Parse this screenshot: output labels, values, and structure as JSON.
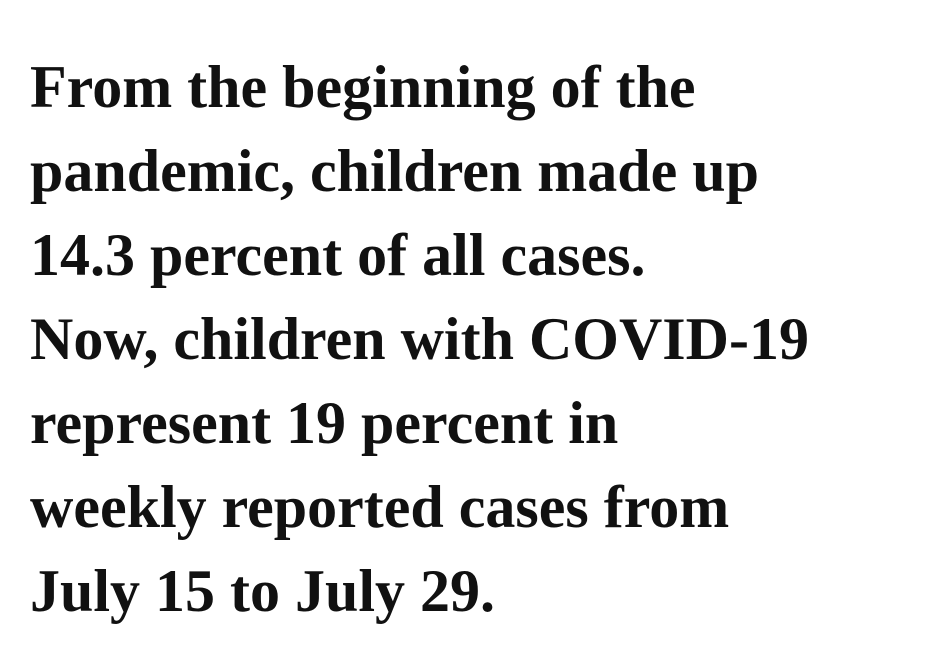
{
  "text": {
    "lines": [
      "From the beginning of the",
      "pandemic, children made up",
      "14.3 percent of all cases.",
      "Now, children with COVID-19",
      "represent 19 percent in",
      "weekly reported cases from",
      "July 15 to July 29."
    ]
  }
}
